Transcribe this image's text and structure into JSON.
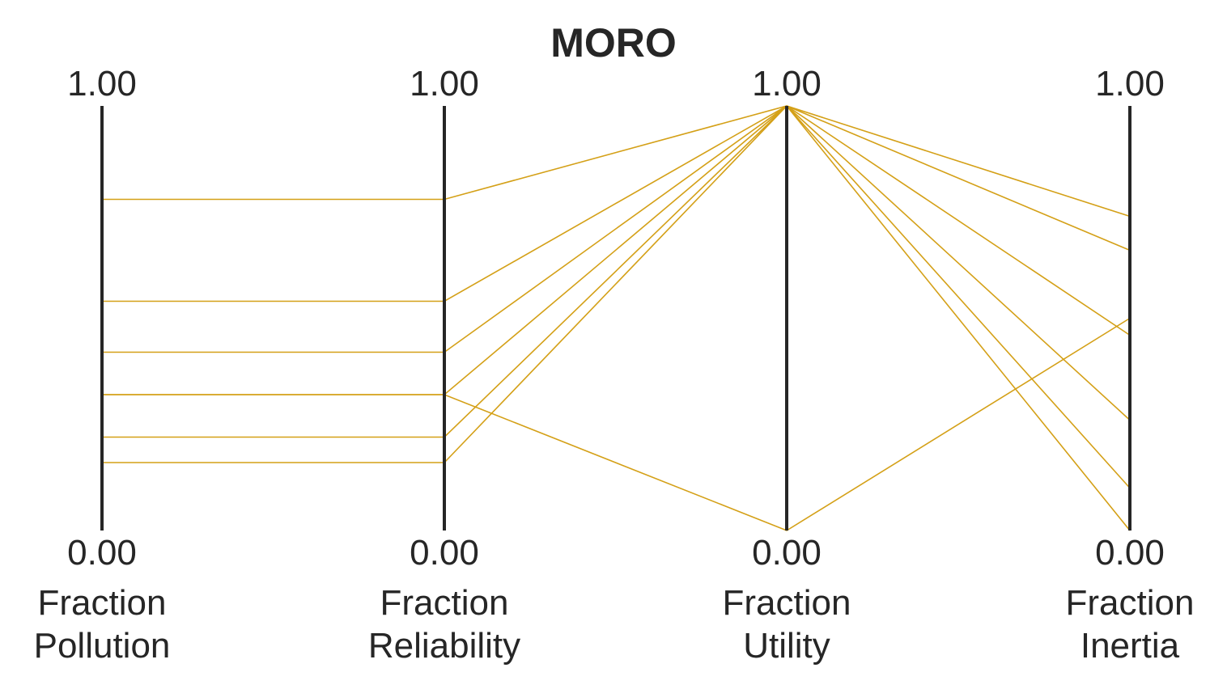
{
  "chart_data": {
    "type": "parallel_coordinates",
    "title": "MORO",
    "line_color": "#D4A017",
    "axes": [
      {
        "label_line1": "Fraction",
        "label_line2": "Pollution",
        "max_label": "1.00",
        "min_label": "0.00"
      },
      {
        "label_line1": "Fraction",
        "label_line2": "Reliability",
        "max_label": "1.00",
        "min_label": "0.00"
      },
      {
        "label_line1": "Fraction",
        "label_line2": "Utility",
        "max_label": "1.00",
        "min_label": "0.00"
      },
      {
        "label_line1": "Fraction",
        "label_line2": "Inertia",
        "max_label": "1.00",
        "min_label": "0.00"
      }
    ],
    "ylim": [
      0,
      1
    ],
    "series": [
      {
        "values": [
          0.78,
          0.78,
          1.0,
          0.74
        ]
      },
      {
        "values": [
          0.54,
          0.54,
          1.0,
          0.66
        ]
      },
      {
        "values": [
          0.42,
          0.42,
          1.0,
          0.46
        ]
      },
      {
        "values": [
          0.32,
          0.32,
          1.0,
          0.26
        ]
      },
      {
        "values": [
          0.22,
          0.22,
          1.0,
          0.1
        ]
      },
      {
        "values": [
          0.16,
          0.16,
          1.0,
          0.0
        ]
      },
      {
        "values": [
          0.32,
          0.32,
          0.0,
          0.5
        ]
      }
    ]
  }
}
